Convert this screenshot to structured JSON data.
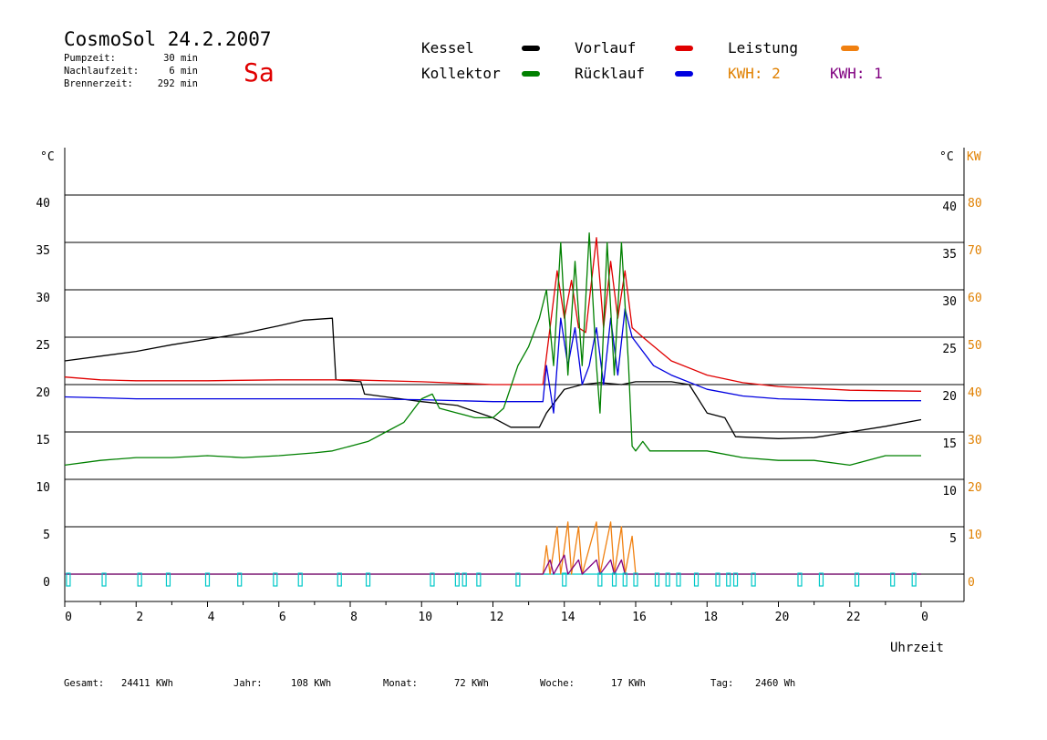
{
  "header": {
    "title": "CosmoSol 24.2.2007",
    "weekday": "Sa",
    "stats": [
      {
        "label": "Pumpzeit:",
        "value": "30 min"
      },
      {
        "label": "Nachlaufzeit:",
        "value": "6 min"
      },
      {
        "label": "Brennerzeit:",
        "value": "292 min"
      }
    ]
  },
  "legend": {
    "items": [
      {
        "label": "Kessel",
        "color": "#000000"
      },
      {
        "label": "Vorlauf",
        "color": "#e00000"
      },
      {
        "label": "Leistung",
        "color": "#f08010"
      },
      {
        "label": "Kollektor",
        "color": "#008000"
      },
      {
        "label": "Rücklauf",
        "color": "#0000e0"
      }
    ],
    "kwh": [
      {
        "label": "KWH: 2",
        "color": "#e08000"
      },
      {
        "label": "KWH: 1",
        "color": "#800080"
      }
    ]
  },
  "axes": {
    "left_unit": "°C",
    "right_unit_c": "°C",
    "right_unit_kw": "KW",
    "x_label": "Uhrzeit",
    "left_ticks": [
      "0",
      "5",
      "10",
      "15",
      "20",
      "25",
      "30",
      "35",
      "40"
    ],
    "right_c_ticks": [
      "5",
      "10",
      "15",
      "20",
      "25",
      "30",
      "35",
      "40"
    ],
    "right_kw_ticks": [
      "0",
      "10",
      "20",
      "30",
      "40",
      "50",
      "60",
      "70",
      "80"
    ],
    "x_ticks": [
      "0",
      "2",
      "4",
      "6",
      "8",
      "10",
      "12",
      "14",
      "16",
      "18",
      "20",
      "22",
      "0"
    ]
  },
  "footer": [
    {
      "label": "Gesamt:",
      "value": "24411 KWh"
    },
    {
      "label": "Jahr:",
      "value": "108 KWh"
    },
    {
      "label": "Monat:",
      "value": "72 KWh"
    },
    {
      "label": "Woche:",
      "value": "17 KWh"
    },
    {
      "label": "Tag:",
      "value": "2460 Wh"
    }
  ],
  "chart_data": {
    "type": "line",
    "x_unit": "hour",
    "xlim": [
      0,
      24
    ],
    "ylim": [
      0,
      40
    ],
    "y2lim": [
      0,
      80
    ],
    "grid": true,
    "series": [
      {
        "name": "Kessel",
        "color": "#000000",
        "points": [
          [
            0,
            22.5
          ],
          [
            1,
            23
          ],
          [
            2,
            23.5
          ],
          [
            3,
            24.2
          ],
          [
            4,
            24.8
          ],
          [
            5,
            25.4
          ],
          [
            6,
            26.2
          ],
          [
            6.7,
            26.8
          ],
          [
            7.5,
            27
          ],
          [
            7.6,
            20.5
          ],
          [
            8.3,
            20.3
          ],
          [
            8.4,
            19
          ],
          [
            9,
            18.7
          ],
          [
            10,
            18.2
          ],
          [
            11,
            17.8
          ],
          [
            12,
            16.5
          ],
          [
            12.5,
            15.5
          ],
          [
            13.3,
            15.5
          ],
          [
            13.5,
            17
          ],
          [
            14,
            19.5
          ],
          [
            14.5,
            20
          ],
          [
            15,
            20.2
          ],
          [
            15.6,
            20
          ],
          [
            16,
            20.3
          ],
          [
            17,
            20.3
          ],
          [
            17.5,
            20
          ],
          [
            18,
            17
          ],
          [
            18.5,
            16.5
          ],
          [
            18.8,
            14.5
          ],
          [
            20,
            14.3
          ],
          [
            21,
            14.4
          ],
          [
            22,
            15
          ],
          [
            23,
            15.6
          ],
          [
            24,
            16.3
          ]
        ]
      },
      {
        "name": "Vorlauf",
        "color": "#e00000",
        "points": [
          [
            0,
            20.8
          ],
          [
            1,
            20.5
          ],
          [
            2,
            20.4
          ],
          [
            4,
            20.4
          ],
          [
            6,
            20.5
          ],
          [
            8,
            20.5
          ],
          [
            10,
            20.3
          ],
          [
            12,
            20
          ],
          [
            13.4,
            20
          ],
          [
            13.5,
            23
          ],
          [
            13.8,
            32
          ],
          [
            14,
            27
          ],
          [
            14.2,
            31
          ],
          [
            14.4,
            26
          ],
          [
            14.6,
            25.5
          ],
          [
            14.9,
            35.5
          ],
          [
            15.1,
            26
          ],
          [
            15.3,
            33
          ],
          [
            15.5,
            27
          ],
          [
            15.7,
            32
          ],
          [
            15.9,
            26
          ],
          [
            16.2,
            25
          ],
          [
            17,
            22.5
          ],
          [
            18,
            21
          ],
          [
            19,
            20.2
          ],
          [
            20,
            19.8
          ],
          [
            22,
            19.4
          ],
          [
            24,
            19.3
          ]
        ]
      },
      {
        "name": "Rücklauf",
        "color": "#0000e0",
        "points": [
          [
            0,
            18.7
          ],
          [
            2,
            18.5
          ],
          [
            4,
            18.5
          ],
          [
            6,
            18.5
          ],
          [
            8,
            18.5
          ],
          [
            10,
            18.4
          ],
          [
            12,
            18.2
          ],
          [
            13.4,
            18.2
          ],
          [
            13.5,
            22
          ],
          [
            13.7,
            17
          ],
          [
            13.9,
            27
          ],
          [
            14.1,
            22
          ],
          [
            14.3,
            26
          ],
          [
            14.5,
            20
          ],
          [
            14.7,
            22
          ],
          [
            14.9,
            26
          ],
          [
            15.1,
            20
          ],
          [
            15.3,
            27
          ],
          [
            15.5,
            21
          ],
          [
            15.7,
            28
          ],
          [
            15.9,
            25
          ],
          [
            16.5,
            22
          ],
          [
            17,
            21
          ],
          [
            18,
            19.5
          ],
          [
            19,
            18.8
          ],
          [
            20,
            18.5
          ],
          [
            22,
            18.3
          ],
          [
            24,
            18.3
          ]
        ]
      },
      {
        "name": "Kollektor",
        "color": "#008000",
        "points": [
          [
            0,
            11.5
          ],
          [
            1,
            12
          ],
          [
            2,
            12.3
          ],
          [
            3,
            12.3
          ],
          [
            4,
            12.5
          ],
          [
            5,
            12.3
          ],
          [
            6,
            12.5
          ],
          [
            7,
            12.8
          ],
          [
            7.5,
            13
          ],
          [
            8,
            13.5
          ],
          [
            8.5,
            14
          ],
          [
            9,
            15
          ],
          [
            9.5,
            16
          ],
          [
            10,
            18.5
          ],
          [
            10.3,
            19
          ],
          [
            10.5,
            17.5
          ],
          [
            11,
            17
          ],
          [
            11.5,
            16.5
          ],
          [
            12,
            16.5
          ],
          [
            12.3,
            17.5
          ],
          [
            12.7,
            22
          ],
          [
            13,
            24
          ],
          [
            13.3,
            27
          ],
          [
            13.5,
            30
          ],
          [
            13.7,
            22
          ],
          [
            13.9,
            35
          ],
          [
            14.1,
            21
          ],
          [
            14.3,
            33
          ],
          [
            14.5,
            22
          ],
          [
            14.7,
            36
          ],
          [
            14.9,
            22
          ],
          [
            15,
            17
          ],
          [
            15.2,
            35
          ],
          [
            15.4,
            21
          ],
          [
            15.6,
            35
          ],
          [
            15.8,
            22
          ],
          [
            15.9,
            13.5
          ],
          [
            16,
            13
          ],
          [
            16.2,
            14
          ],
          [
            16.4,
            13
          ],
          [
            17,
            13
          ],
          [
            18,
            13
          ],
          [
            19,
            12.3
          ],
          [
            20,
            12
          ],
          [
            21,
            12
          ],
          [
            22,
            11.5
          ],
          [
            23,
            12.5
          ],
          [
            24,
            12.5
          ]
        ]
      },
      {
        "name": "Leistung",
        "color": "#f08010",
        "axis": "kw",
        "points": [
          [
            0,
            0
          ],
          [
            13.4,
            0
          ],
          [
            13.5,
            6
          ],
          [
            13.6,
            0
          ],
          [
            13.8,
            10
          ],
          [
            13.9,
            0
          ],
          [
            14.1,
            11
          ],
          [
            14.2,
            0
          ],
          [
            14.4,
            10
          ],
          [
            14.5,
            0
          ],
          [
            14.9,
            11
          ],
          [
            15,
            0
          ],
          [
            15.3,
            11
          ],
          [
            15.4,
            0
          ],
          [
            15.6,
            10
          ],
          [
            15.7,
            0
          ],
          [
            15.9,
            8
          ],
          [
            16,
            0
          ],
          [
            24,
            0
          ]
        ]
      },
      {
        "name": "KWH 1",
        "color": "#800080",
        "axis": "kw",
        "points": [
          [
            0,
            0
          ],
          [
            13.4,
            0
          ],
          [
            13.6,
            3
          ],
          [
            13.7,
            0
          ],
          [
            14,
            4
          ],
          [
            14.1,
            0
          ],
          [
            14.4,
            3
          ],
          [
            14.5,
            0
          ],
          [
            14.9,
            3
          ],
          [
            15,
            0
          ],
          [
            15.3,
            3
          ],
          [
            15.4,
            0
          ],
          [
            15.6,
            3
          ],
          [
            15.7,
            0
          ],
          [
            24,
            0
          ]
        ]
      }
    ],
    "pump_markers_h": [
      0.1,
      1.1,
      2.1,
      2.9,
      4,
      4.9,
      5.9,
      6.6,
      7.7,
      8.5,
      10.3,
      11,
      11.2,
      11.6,
      12.7,
      14,
      15,
      15.4,
      15.7,
      16,
      16.6,
      16.9,
      17.2,
      17.7,
      18.3,
      18.6,
      18.8,
      19.3,
      20.6,
      21.2,
      22.2,
      23.2,
      23.8
    ]
  }
}
